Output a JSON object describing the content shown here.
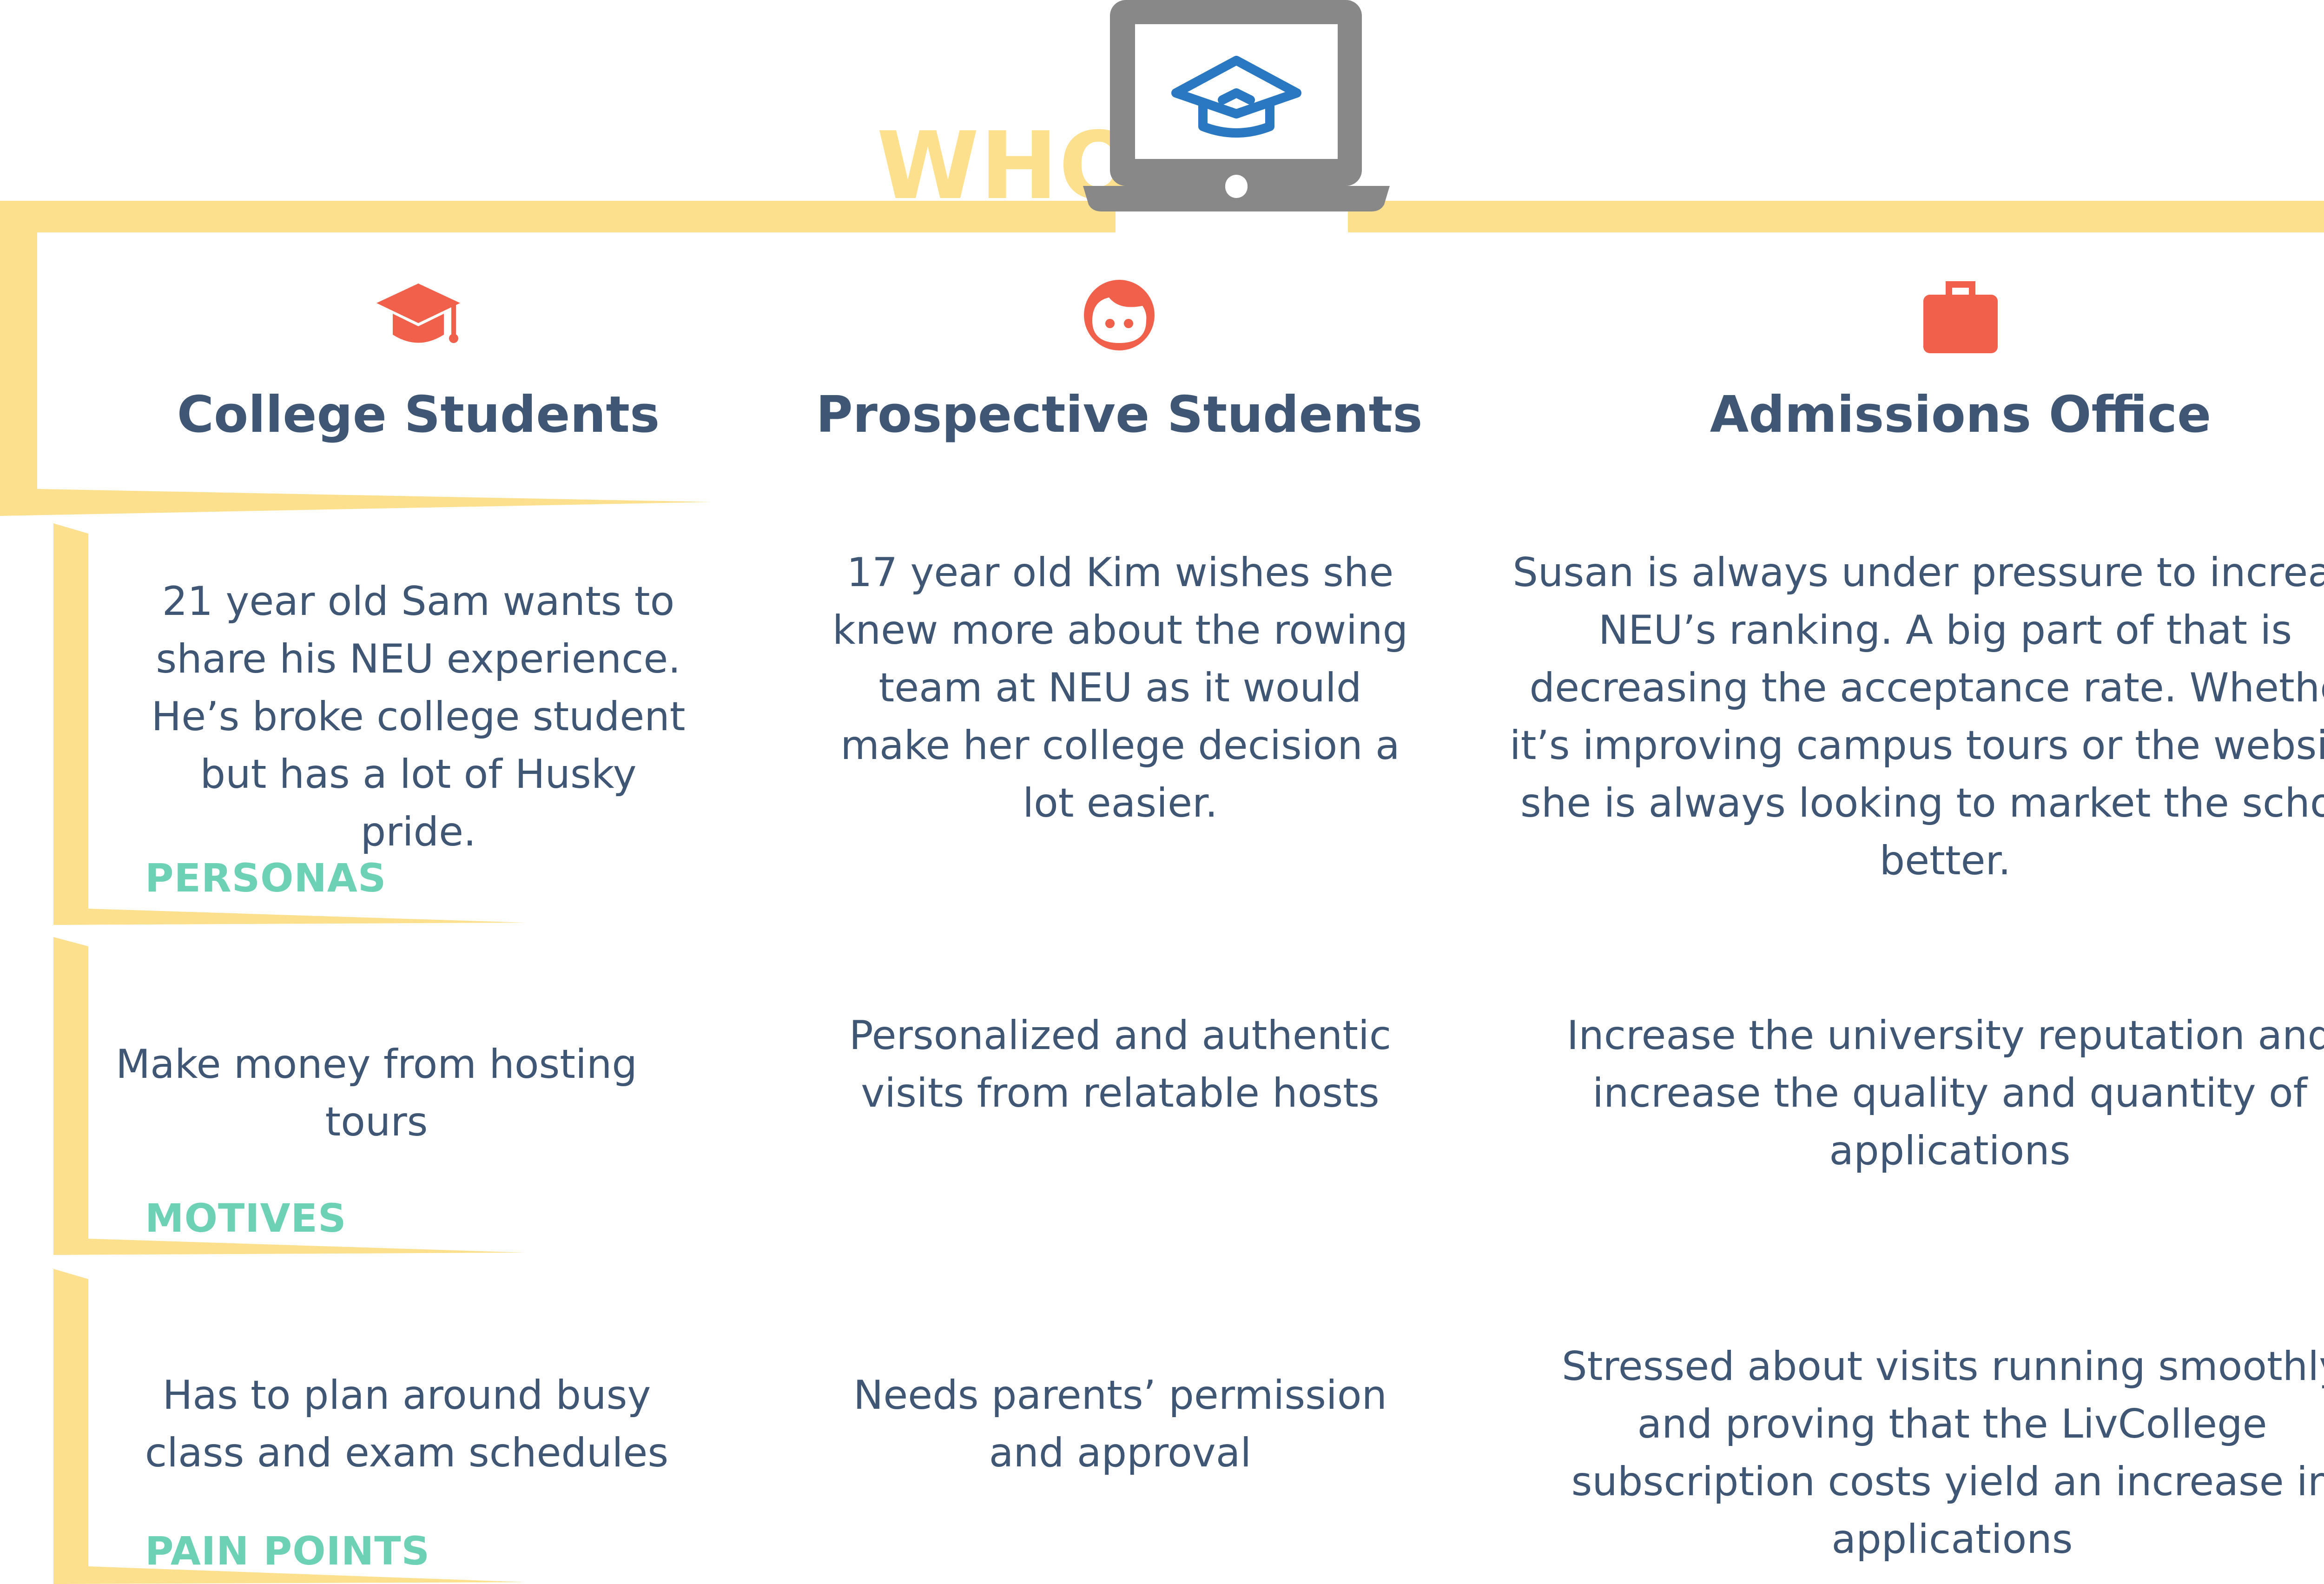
{
  "header": {
    "title": "WHO"
  },
  "laptop_logo": {
    "icon": "graduation-cap-house-logo"
  },
  "columns": [
    {
      "title": "College Students",
      "icon": "graduation-cap-icon"
    },
    {
      "title": "Prospective Students",
      "icon": "student-face-icon"
    },
    {
      "title": "Admissions Office",
      "icon": "briefcase-icon"
    }
  ],
  "rows": [
    {
      "label": "PERSONAS",
      "cells": [
        "21 year old Sam wants to share his NEU experience. He’s broke college student but has a lot of Husky pride.",
        "17 year old Kim wishes she knew more about the rowing team at NEU as it would make her college decision a lot easier.",
        "Susan is always under pressure to increase NEU’s ranking. A big part of that is decreasing the acceptance rate. Whether it’s improving campus tours or the website, she is always looking to market the school better."
      ]
    },
    {
      "label": "MOTIVES",
      "cells": [
        "Make money from hosting tours",
        "Personalized and authentic visits from relatable hosts",
        "Increase the university reputation and increase the quality and quantity of applications"
      ]
    },
    {
      "label": "PAIN POINTS",
      "cells": [
        "Has to plan around busy class and exam schedules",
        "Needs parents’ permission and approval",
        "Stressed about visits running smoothly and proving that the LivCollege subscription costs yield an increase in applications"
      ]
    }
  ],
  "colors": {
    "frame_yellow": "#fce08e",
    "heading_navy": "#3f5674",
    "label_teal": "#6dd1b5",
    "icon_coral": "#f0604a",
    "laptop_gray": "#888888",
    "logo_blue": "#2a78c2"
  }
}
